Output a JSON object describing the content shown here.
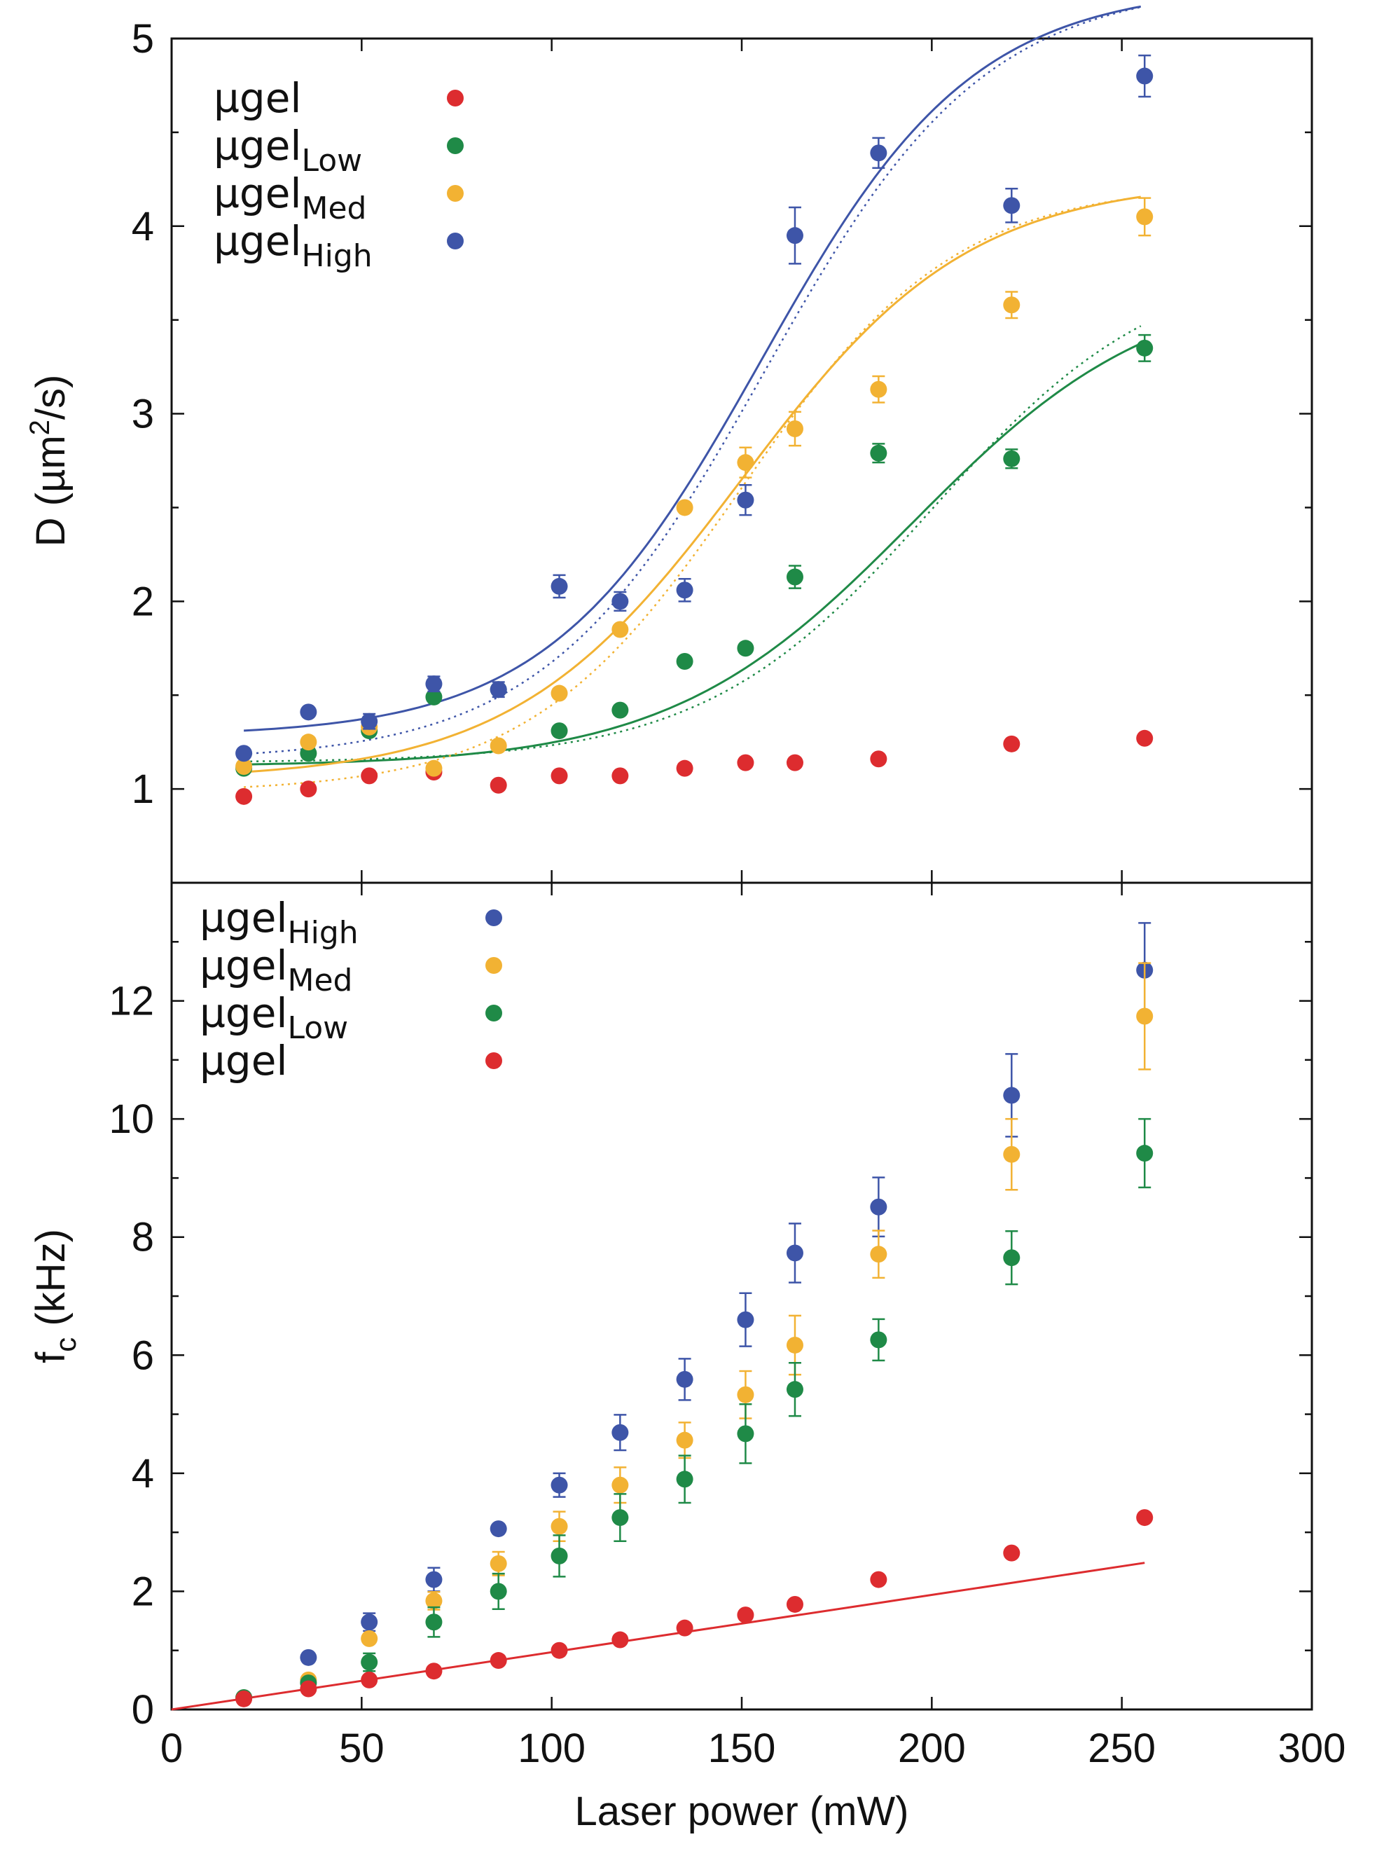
{
  "chart_data": [
    {
      "type": "scatter",
      "panel": "top",
      "xlabel": "Laser power (mW)",
      "ylabel_parts": [
        "D (µm",
        "2",
        "/s)"
      ],
      "xlim": [
        0,
        300
      ],
      "ylim": [
        0.5,
        5
      ],
      "yticks": [
        "1",
        "2",
        "3",
        "4",
        "5"
      ],
      "x": [
        19,
        36,
        52,
        69,
        86,
        102,
        118,
        135,
        151,
        164,
        186,
        221,
        256
      ],
      "legend_position": "top-left",
      "legend": [
        {
          "base": "µgel",
          "sub": "",
          "color": "#dd2c2f"
        },
        {
          "base": "µgel",
          "sub": "Low",
          "color": "#1f8a47"
        },
        {
          "base": "µgel",
          "sub": "Med",
          "color": "#f2b233"
        },
        {
          "base": "µgel",
          "sub": "High",
          "color": "#3e55a8"
        }
      ],
      "series": [
        {
          "name": "µgel",
          "color": "#dd2c2f",
          "values": [
            0.96,
            1.0,
            1.07,
            1.09,
            1.02,
            1.07,
            1.07,
            1.11,
            1.14,
            1.14,
            1.16,
            1.24,
            1.27
          ],
          "errors": [
            0,
            0,
            0,
            0,
            0,
            0,
            0,
            0,
            0,
            0,
            0,
            0,
            0
          ]
        },
        {
          "name": "µgelLow",
          "color": "#1f8a47",
          "values": [
            1.11,
            1.19,
            1.31,
            1.49,
            1.53,
            1.31,
            1.42,
            1.68,
            1.75,
            2.13,
            2.79,
            2.76,
            3.35
          ],
          "errors": [
            0,
            0,
            0,
            0,
            0,
            0,
            0,
            0,
            0,
            0.06,
            0.05,
            0.05,
            0.07
          ],
          "fit": {
            "type": "sigmoid",
            "a": 1.12,
            "b": 2.6,
            "x0": 195,
            "w": 32
          },
          "fit_dotted": {
            "type": "sigmoid",
            "a": 1.14,
            "b": 2.7,
            "x0": 200,
            "w": 30
          }
        },
        {
          "name": "µgelMed",
          "color": "#f2b233",
          "values": [
            1.12,
            1.25,
            1.33,
            1.11,
            1.23,
            1.51,
            1.85,
            2.5,
            2.74,
            2.92,
            3.13,
            3.58,
            4.05
          ],
          "errors": [
            0,
            0,
            0,
            0,
            0,
            0,
            0,
            0,
            0.08,
            0.09,
            0.07,
            0.07,
            0.1
          ],
          "fit": {
            "type": "sigmoid",
            "a": 1.05,
            "b": 3.2,
            "x0": 150,
            "w": 30
          },
          "fit_dotted": {
            "type": "sigmoid",
            "a": 0.98,
            "b": 3.25,
            "x0": 150,
            "w": 28
          }
        },
        {
          "name": "µgelHigh",
          "color": "#3e55a8",
          "values": [
            1.19,
            1.41,
            1.36,
            1.56,
            1.53,
            2.08,
            2.0,
            2.06,
            2.54,
            3.95,
            4.39,
            4.11,
            4.8
          ],
          "errors": [
            0,
            0,
            0.04,
            0.04,
            0.04,
            0.06,
            0.05,
            0.06,
            0.08,
            0.15,
            0.08,
            0.09,
            0.11
          ],
          "fit": {
            "type": "sigmoid",
            "a": 1.28,
            "b": 4.0,
            "x0": 155,
            "w": 28
          },
          "fit_dotted": {
            "type": "sigmoid",
            "a": 1.15,
            "b": 4.15,
            "x0": 156,
            "w": 29
          }
        }
      ]
    },
    {
      "type": "scatter",
      "panel": "bottom",
      "xlabel": "Laser power (mW)",
      "ylabel_parts": [
        "f",
        "c",
        " (kHz)"
      ],
      "xlim": [
        0,
        300
      ],
      "ylim": [
        0,
        14
      ],
      "xticks": [
        "0",
        "50",
        "100",
        "150",
        "200",
        "250",
        "300"
      ],
      "yticks": [
        "0",
        "2",
        "4",
        "6",
        "8",
        "10",
        "12"
      ],
      "x": [
        19,
        36,
        52,
        69,
        86,
        102,
        118,
        135,
        151,
        164,
        186,
        221,
        256
      ],
      "legend_position": "top-left",
      "legend": [
        {
          "base": "µgel",
          "sub": "High",
          "color": "#3e55a8"
        },
        {
          "base": "µgel",
          "sub": "Med",
          "color": "#f2b233"
        },
        {
          "base": "µgel",
          "sub": "Low",
          "color": "#1f8a47"
        },
        {
          "base": "µgel",
          "sub": "",
          "color": "#dd2c2f"
        }
      ],
      "series": [
        {
          "name": "µgelHigh",
          "color": "#3e55a8",
          "values": [
            0.2,
            0.88,
            1.48,
            2.2,
            3.06,
            3.8,
            4.69,
            5.59,
            6.6,
            7.73,
            8.51,
            10.4,
            12.52
          ],
          "errors": [
            0,
            0,
            0.15,
            0.2,
            0,
            0.2,
            0.3,
            0.35,
            0.45,
            0.5,
            0.5,
            0.7,
            0.8
          ]
        },
        {
          "name": "µgelMed",
          "color": "#f2b233",
          "values": [
            0.2,
            0.5,
            1.2,
            1.84,
            2.47,
            3.1,
            3.8,
            4.56,
            5.33,
            6.17,
            7.71,
            9.4,
            11.74
          ],
          "errors": [
            0,
            0,
            0,
            0.15,
            0.2,
            0.25,
            0.3,
            0.3,
            0.4,
            0.5,
            0.4,
            0.6,
            0.9
          ]
        },
        {
          "name": "µgelLow",
          "color": "#1f8a47",
          "values": [
            0.2,
            0.45,
            0.8,
            1.48,
            2.0,
            2.6,
            3.25,
            3.9,
            4.67,
            5.42,
            6.26,
            7.65,
            9.42
          ],
          "errors": [
            0,
            0,
            0.15,
            0.25,
            0.3,
            0.35,
            0.4,
            0.4,
            0.5,
            0.45,
            0.35,
            0.45,
            0.58
          ]
        },
        {
          "name": "µgel",
          "color": "#dd2c2f",
          "values": [
            0.18,
            0.35,
            0.5,
            0.65,
            0.83,
            1.0,
            1.18,
            1.38,
            1.6,
            1.78,
            2.2,
            2.65,
            3.25
          ],
          "errors": [
            0,
            0,
            0,
            0,
            0,
            0,
            0,
            0,
            0,
            0,
            0,
            0,
            0
          ],
          "fit": {
            "type": "linear",
            "slope": 0.0097,
            "intercept": 0,
            "x_from": 0,
            "x_to": 256
          }
        }
      ]
    }
  ]
}
